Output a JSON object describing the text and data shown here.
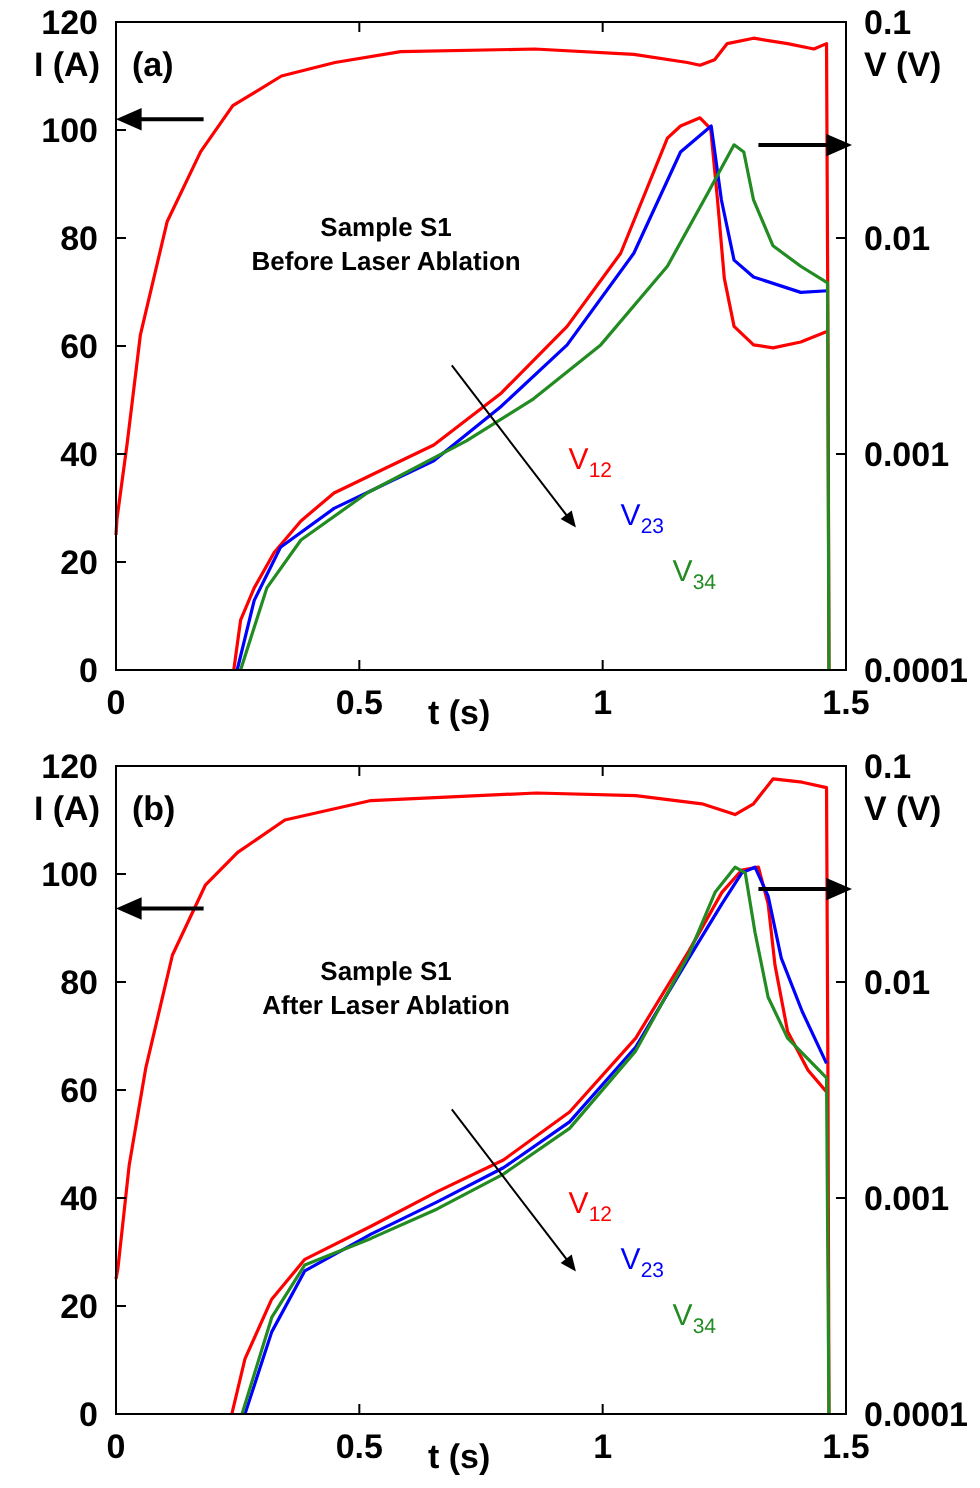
{
  "chart_data": [
    {
      "type": "line",
      "title": "(a)",
      "xlabel": "t (s)",
      "ylabel": "I (A)",
      "y2label": "V (V)",
      "annotations": [
        "Sample S1\nBefore Laser Ablation"
      ],
      "xlim": [
        0,
        1.5
      ],
      "xticks": [
        0,
        0.5,
        1,
        1.5
      ],
      "ylim": [
        0,
        120
      ],
      "yticks": [
        0,
        20,
        40,
        60,
        80,
        100,
        120
      ],
      "y2lim": [
        0.0001,
        0.1
      ],
      "y2ticks": [
        0.0001,
        0.001,
        0.01,
        0.1
      ],
      "log": "y2",
      "grid": false,
      "legend": false,
      "marker": "none",
      "line_style": "solid",
      "series": [
        {
          "color": "#ff0000",
          "axis": "y",
          "x": [
            0,
            0.002,
            0.023,
            0.05,
            0.105,
            0.174,
            0.24,
            0.34,
            0.45,
            0.585,
            0.86,
            1.064,
            1.174,
            1.2,
            1.23,
            1.256,
            1.31,
            1.38,
            1.434,
            1.46,
            1.463,
            1.465
          ],
          "values": [
            25,
            28,
            42,
            62,
            83,
            96,
            104.5,
            110,
            112.5,
            114.5,
            115,
            114,
            112.5,
            112,
            113,
            116,
            117,
            116,
            115,
            116,
            60,
            0
          ]
        },
        {
          "name": "V$_{12}$",
          "color": "#ff0000",
          "axis": "y2",
          "x": [
            0.242,
            0.256,
            0.284,
            0.325,
            0.38,
            0.448,
            0.53,
            0.653,
            0.79,
            0.927,
            1.037,
            1.133,
            1.16,
            1.2,
            1.222,
            1.236,
            1.25,
            1.27,
            1.31,
            1.35,
            1.407,
            1.462
          ],
          "values": [
            0.0001,
            0.00017,
            0.00024,
            0.00035,
            0.00049,
            0.00066,
            0.00081,
            0.0011,
            0.0019,
            0.0039,
            0.0085,
            0.029,
            0.033,
            0.036,
            0.032,
            0.015,
            0.0065,
            0.0039,
            0.0032,
            0.0031,
            0.0033,
            0.0037
          ]
        },
        {
          "name": "V$_{23}$",
          "color": "#0000ff",
          "axis": "y2",
          "x": [
            0.249,
            0.284,
            0.338,
            0.448,
            0.653,
            0.79,
            0.927,
            1.064,
            1.16,
            1.223,
            1.244,
            1.27,
            1.31,
            1.407,
            1.462
          ],
          "values": [
            0.0001,
            0.00021,
            0.00037,
            0.00056,
            0.00093,
            0.00165,
            0.0032,
            0.0085,
            0.025,
            0.033,
            0.015,
            0.0079,
            0.0066,
            0.0056,
            0.0057
          ]
        },
        {
          "name": "V$_{34}$",
          "color": "#228b22",
          "axis": "y2",
          "x": [
            0.256,
            0.31,
            0.38,
            0.516,
            0.72,
            0.858,
            0.996,
            1.133,
            1.215,
            1.27,
            1.29,
            1.31,
            1.35,
            1.407,
            1.462,
            1.465
          ],
          "values": [
            0.0001,
            0.00024,
            0.0004,
            0.00066,
            0.00115,
            0.0018,
            0.0032,
            0.0074,
            0.016,
            0.027,
            0.025,
            0.015,
            0.0092,
            0.0074,
            0.0062,
            0.0001
          ]
        }
      ]
    },
    {
      "type": "line",
      "title": "(b)",
      "xlabel": "t (s)",
      "ylabel": "I (A)",
      "y2label": "V (V)",
      "annotations": [
        "Sample S1\nAfter Laser Ablation"
      ],
      "xlim": [
        0,
        1.5
      ],
      "xticks": [
        0,
        0.5,
        1,
        1.5
      ],
      "ylim": [
        0,
        120
      ],
      "yticks": [
        0,
        20,
        40,
        60,
        80,
        100,
        120
      ],
      "y2lim": [
        0.0001,
        0.1
      ],
      "y2ticks": [
        0.0001,
        0.001,
        0.01,
        0.1
      ],
      "log": "y2",
      "grid": false,
      "legend": false,
      "marker": "none",
      "line_style": "solid",
      "series": [
        {
          "color": "#ff0000",
          "axis": "y",
          "x": [
            0,
            0.004,
            0.027,
            0.061,
            0.116,
            0.184,
            0.25,
            0.347,
            0.524,
            0.864,
            1.068,
            1.204,
            1.272,
            1.31,
            1.35,
            1.41,
            1.46,
            1.463,
            1.465
          ],
          "values": [
            25,
            27,
            46,
            64,
            85,
            98,
            104,
            110,
            113.6,
            115,
            114.5,
            113,
            111,
            113,
            117.6,
            117,
            116,
            60,
            0
          ]
        },
        {
          "name": "V$_{12}$",
          "color": "#ff0000",
          "axis": "y2",
          "x": [
            0.238,
            0.265,
            0.32,
            0.388,
            0.524,
            0.66,
            0.796,
            0.932,
            1.068,
            1.177,
            1.245,
            1.286,
            1.32,
            1.34,
            1.354,
            1.38,
            1.422,
            1.46
          ],
          "values": [
            0.0001,
            0.00018,
            0.00034,
            0.00052,
            0.00074,
            0.00107,
            0.0015,
            0.0025,
            0.0055,
            0.0139,
            0.026,
            0.033,
            0.034,
            0.023,
            0.012,
            0.0059,
            0.0039,
            0.0031
          ]
        },
        {
          "name": "V$_{23}$",
          "color": "#0000ff",
          "axis": "y2",
          "x": [
            0.265,
            0.32,
            0.388,
            0.524,
            0.66,
            0.796,
            0.932,
            1.068,
            1.177,
            1.245,
            1.286,
            1.313,
            1.34,
            1.367,
            1.41,
            1.46
          ],
          "values": [
            0.0001,
            0.00024,
            0.00046,
            0.00068,
            0.00096,
            0.00138,
            0.00225,
            0.005,
            0.0129,
            0.023,
            0.032,
            0.034,
            0.025,
            0.0129,
            0.0073,
            0.0042
          ]
        },
        {
          "name": "V$_{34}$",
          "color": "#228b22",
          "axis": "y2",
          "x": [
            0.259,
            0.32,
            0.388,
            0.524,
            0.66,
            0.796,
            0.932,
            1.068,
            1.177,
            1.231,
            1.272,
            1.293,
            1.313,
            1.34,
            1.38,
            1.46,
            1.465
          ],
          "values": [
            0.0001,
            0.00028,
            0.00049,
            0.00065,
            0.00089,
            0.00129,
            0.0021,
            0.0048,
            0.0134,
            0.026,
            0.034,
            0.032,
            0.017,
            0.0085,
            0.0055,
            0.0036,
            0.0001
          ]
        }
      ]
    }
  ]
}
